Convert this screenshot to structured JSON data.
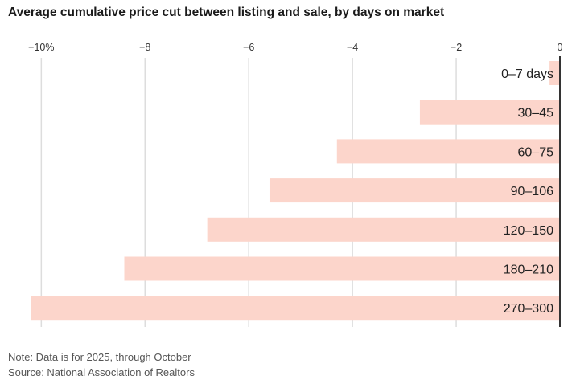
{
  "chart_data": {
    "type": "bar",
    "orientation": "horizontal",
    "title": "Average cumulative price cut between listing and sale, by days on market",
    "categories": [
      "0–7 days",
      "30–45",
      "60–75",
      "90–106",
      "120–150",
      "180–210",
      "270–300"
    ],
    "values": [
      -0.2,
      -2.7,
      -4.3,
      -5.6,
      -6.8,
      -8.4,
      -10.2
    ],
    "unit": "%",
    "xlim": [
      -10.3,
      0
    ],
    "xticks": [
      -10,
      -8,
      -6,
      -4,
      -2,
      0
    ],
    "xtick_labels": [
      "−10%",
      "−8",
      "−6",
      "−4",
      "−2",
      "0"
    ],
    "axis_position": "top",
    "grid": true,
    "legend": "none",
    "colors": {
      "bar": "#fcd5cb",
      "grid": "#dddddd",
      "zero_line": "#333333"
    },
    "notes": [
      "Note: Data is for 2025, through October",
      "Source: National Association of Realtors"
    ]
  }
}
